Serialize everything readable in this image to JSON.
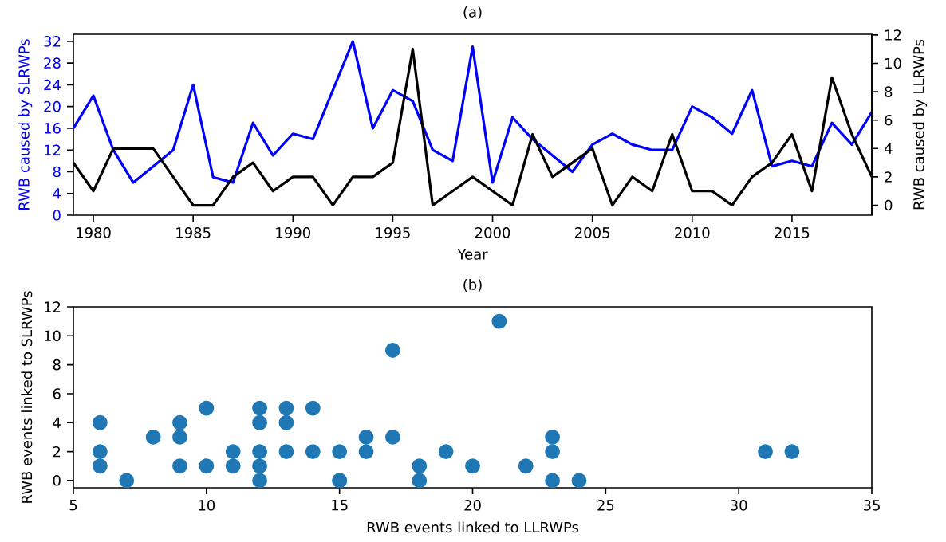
{
  "chart_data": [
    {
      "type": "line",
      "title": "(a)",
      "xlabel": "Year",
      "ylabel": "RWB caused by SLRWPs",
      "y2label": "RWB caused by LLRWPs",
      "x": [
        1979,
        1980,
        1981,
        1982,
        1983,
        1984,
        1985,
        1986,
        1987,
        1988,
        1989,
        1990,
        1991,
        1992,
        1993,
        1994,
        1995,
        1996,
        1997,
        1998,
        1999,
        2000,
        2001,
        2002,
        2003,
        2004,
        2005,
        2006,
        2007,
        2008,
        2009,
        2010,
        2011,
        2012,
        2013,
        2014,
        2015,
        2016,
        2017,
        2018,
        2019
      ],
      "series": [
        {
          "color": "#0000ff",
          "values": [
            16,
            22,
            12,
            6,
            9,
            12,
            24,
            7,
            6,
            17,
            11,
            15,
            14,
            23,
            32,
            16,
            23,
            21,
            12,
            10,
            31,
            6,
            18,
            14,
            11,
            8,
            13,
            15,
            13,
            12,
            12,
            20,
            18,
            15,
            23,
            9,
            10,
            9,
            17,
            13,
            19
          ]
        },
        {
          "color": "#000000",
          "axis": "y2",
          "values": [
            3,
            1,
            4,
            4,
            4,
            2,
            0,
            0,
            2,
            3,
            1,
            2,
            2,
            0,
            2,
            2,
            3,
            11,
            0,
            1,
            2,
            1,
            0,
            5,
            2,
            3,
            4,
            0,
            2,
            1,
            5,
            1,
            1,
            0,
            2,
            3,
            5,
            1,
            9,
            5,
            2
          ]
        }
      ],
      "xlim": [
        1979,
        2019
      ],
      "xticks": [
        1980,
        1985,
        1990,
        1995,
        2000,
        2005,
        2010,
        2015
      ],
      "ylim": [
        0,
        33.3
      ],
      "yticks": [
        0,
        4,
        8,
        12,
        16,
        20,
        24,
        28,
        32
      ],
      "y2lim": [
        -0.7,
        12.05
      ],
      "y2ticks": [
        0,
        2,
        4,
        6,
        8,
        10,
        12
      ],
      "grid": false,
      "marker": "none",
      "line_style": "solid"
    },
    {
      "type": "scatter",
      "title": "(b)",
      "xlabel": "RWB events linked to LLRWPs",
      "ylabel": "RWB events linked to SLRWPs",
      "x": [
        16,
        22,
        12,
        6,
        9,
        12,
        24,
        7,
        6,
        17,
        11,
        15,
        14,
        23,
        32,
        16,
        23,
        21,
        12,
        10,
        31,
        6,
        18,
        14,
        11,
        8,
        13,
        15,
        13,
        12,
        12,
        20,
        18,
        15,
        23,
        9,
        10,
        9,
        17,
        13,
        19
      ],
      "values": [
        3,
        1,
        4,
        4,
        4,
        2,
        0,
        0,
        2,
        3,
        1,
        2,
        2,
        0,
        2,
        2,
        3,
        11,
        0,
        1,
        2,
        1,
        0,
        5,
        2,
        3,
        4,
        0,
        2,
        1,
        5,
        1,
        1,
        0,
        2,
        3,
        5,
        1,
        9,
        5,
        2
      ],
      "color": "#1f77b4",
      "marker": "circle",
      "xlim": [
        5,
        35
      ],
      "xticks": [
        5,
        10,
        15,
        20,
        25,
        30,
        35
      ],
      "ylim": [
        -0.5,
        12
      ],
      "yticks": [
        0,
        2,
        4,
        6,
        8,
        10,
        12
      ],
      "grid": false
    }
  ]
}
